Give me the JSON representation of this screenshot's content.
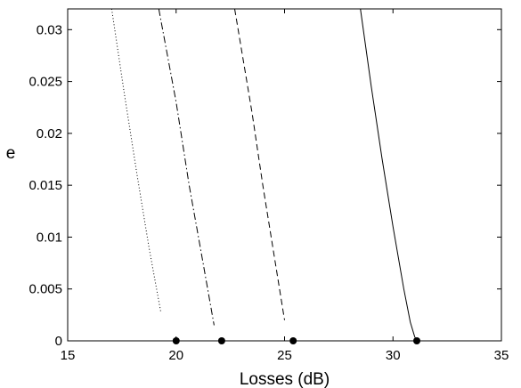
{
  "chart_data": {
    "type": "line",
    "title": "",
    "xlabel": "Losses (dB)",
    "ylabel": "e",
    "xlim": [
      15,
      35
    ],
    "ylim": [
      0,
      0.032
    ],
    "grid": false,
    "legend": "none",
    "xticks": [
      15,
      20,
      25,
      30,
      35
    ],
    "xtick_labels": [
      "15",
      "20",
      "25",
      "30",
      "35"
    ],
    "yticks": [
      0,
      0.005,
      0.01,
      0.015,
      0.02,
      0.025,
      0.03
    ],
    "ytick_labels": [
      "0",
      "0.005",
      "0.01",
      "0.015",
      "0.02",
      "0.025",
      "0.03"
    ],
    "series": [
      {
        "line_style": "dotted",
        "color": "#000000",
        "x": [
          17.03,
          17.6,
          18.2,
          18.75,
          19.3
        ],
        "y": [
          0.032,
          0.024,
          0.016,
          0.009,
          0.0027
        ]
      },
      {
        "line_style": "dash-dot",
        "color": "#000000",
        "x": [
          19.2,
          20.0,
          20.6,
          21.2,
          21.75
        ],
        "y": [
          0.032,
          0.023,
          0.015,
          0.008,
          0.0015
        ]
      },
      {
        "line_style": "dashed",
        "color": "#000000",
        "x": [
          22.7,
          23.5,
          24.0,
          24.5,
          25.0
        ],
        "y": [
          0.032,
          0.022,
          0.015,
          0.0085,
          0.002
        ]
      },
      {
        "line_style": "solid",
        "color": "#000000",
        "x": [
          28.5,
          29.0,
          29.5,
          30.0,
          30.5,
          30.8,
          31.0,
          31.1
        ],
        "y": [
          0.032,
          0.0245,
          0.0175,
          0.011,
          0.005,
          0.0018,
          0.0004,
          0.0
        ]
      }
    ],
    "markers": {
      "x": [
        20.0,
        22.1,
        25.4,
        31.1
      ],
      "y": [
        0,
        0,
        0,
        0
      ]
    }
  }
}
